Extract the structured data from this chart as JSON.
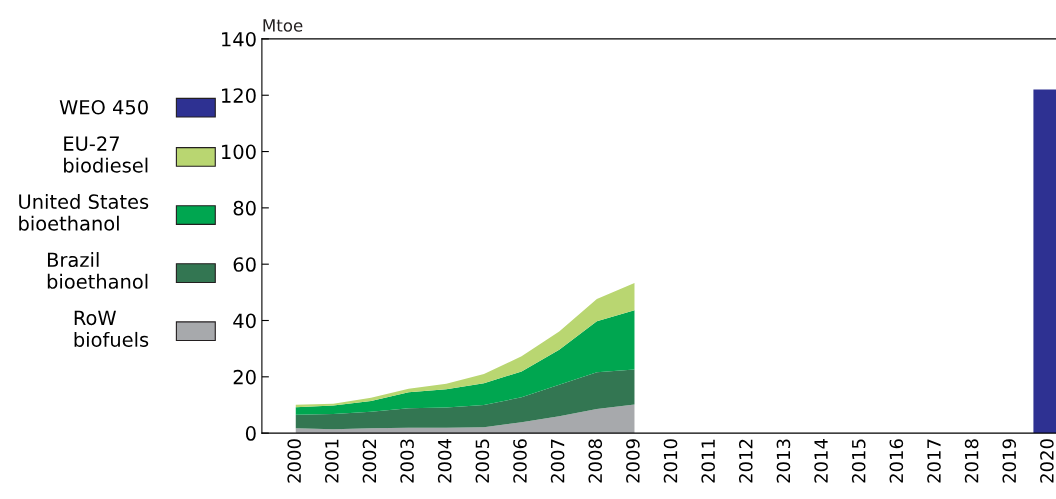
{
  "chart_data": {
    "type": "area",
    "stacked": true,
    "ylabel": "Mtoe",
    "categories": [
      "2000",
      "2001",
      "2002",
      "2003",
      "2004",
      "2005",
      "2006",
      "2007",
      "2008",
      "2009",
      "2010",
      "2011",
      "2012",
      "2013",
      "2014",
      "2015",
      "2016",
      "2017",
      "2018",
      "2019",
      "2020"
    ],
    "series": [
      {
        "name": "RoW\nbiofuels",
        "color": "#a7a9ac",
        "values": [
          1.7,
          1.4,
          1.7,
          1.9,
          1.9,
          2.1,
          3.9,
          6.0,
          8.6,
          10.2,
          null,
          null,
          null,
          null,
          null,
          null,
          null,
          null,
          null,
          null,
          null
        ]
      },
      {
        "name": "Brazil\nbioethanol",
        "color": "#337652",
        "values": [
          4.8,
          5.4,
          5.9,
          6.9,
          7.2,
          7.9,
          8.8,
          11.2,
          13.0,
          12.4,
          null,
          null,
          null,
          null,
          null,
          null,
          null,
          null,
          null,
          null,
          null
        ]
      },
      {
        "name": "United States\nbioethanol",
        "color": "#00a650",
        "values": [
          2.7,
          3.0,
          3.8,
          5.7,
          6.5,
          7.7,
          9.2,
          12.4,
          18.1,
          21.0,
          null,
          null,
          null,
          null,
          null,
          null,
          null,
          null,
          null,
          null,
          null
        ]
      },
      {
        "name": "EU-27\nbiodiesel",
        "color": "#b9d671",
        "values": [
          0.9,
          0.6,
          1.2,
          1.3,
          1.9,
          3.3,
          5.4,
          6.5,
          7.9,
          9.7,
          null,
          null,
          null,
          null,
          null,
          null,
          null,
          null,
          null,
          null,
          null
        ]
      },
      {
        "name": "WEO 450",
        "type": "bar",
        "color": "#2e3192",
        "values": [
          null,
          null,
          null,
          null,
          null,
          null,
          null,
          null,
          null,
          null,
          null,
          null,
          null,
          null,
          null,
          null,
          null,
          null,
          null,
          null,
          122
        ]
      }
    ],
    "ylim": [
      0,
      140
    ],
    "yticks": [
      0,
      20,
      40,
      60,
      80,
      100,
      120,
      140
    ],
    "legend": "left"
  }
}
